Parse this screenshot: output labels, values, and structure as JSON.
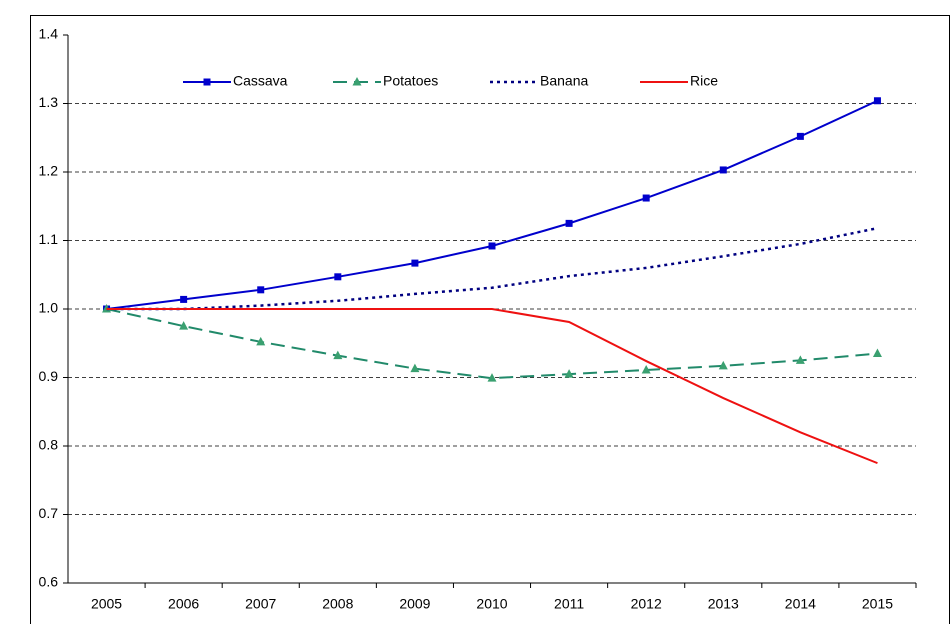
{
  "chart_data": {
    "type": "line",
    "categories": [
      "2005",
      "2006",
      "2007",
      "2008",
      "2009",
      "2010",
      "2011",
      "2012",
      "2013",
      "2014",
      "2015"
    ],
    "series": [
      {
        "name": "Cassava",
        "color": "#0000cc",
        "dash": "solid",
        "marker": "square",
        "values": [
          1.0,
          1.014,
          1.028,
          1.047,
          1.067,
          1.092,
          1.125,
          1.162,
          1.203,
          1.252,
          1.304
        ]
      },
      {
        "name": "Potatoes",
        "color": "#218a6a",
        "dash": "dashed",
        "marker": "triangle",
        "values": [
          1.0,
          0.975,
          0.952,
          0.932,
          0.913,
          0.899,
          0.905,
          0.911,
          0.917,
          0.925,
          0.935
        ]
      },
      {
        "name": "Banana",
        "color": "#000080",
        "dash": "dotted",
        "marker": "none",
        "values": [
          1.0,
          1.0,
          1.005,
          1.012,
          1.022,
          1.031,
          1.048,
          1.06,
          1.077,
          1.095,
          1.118
        ]
      },
      {
        "name": "Rice",
        "color": "#ee1111",
        "dash": "solid",
        "marker": "none",
        "values": [
          1.0,
          1.0,
          1.0,
          1.0,
          1.0,
          1.0,
          0.981,
          0.924,
          0.87,
          0.82,
          0.775
        ]
      }
    ],
    "ylim": [
      0.6,
      1.4
    ],
    "yticks": [
      0.6,
      0.7,
      0.8,
      0.9,
      {
        "value": 1,
        "label": "1.0"
      },
      1.1,
      1.2,
      1.3,
      1.4
    ],
    "grid": true,
    "legend": "top"
  }
}
